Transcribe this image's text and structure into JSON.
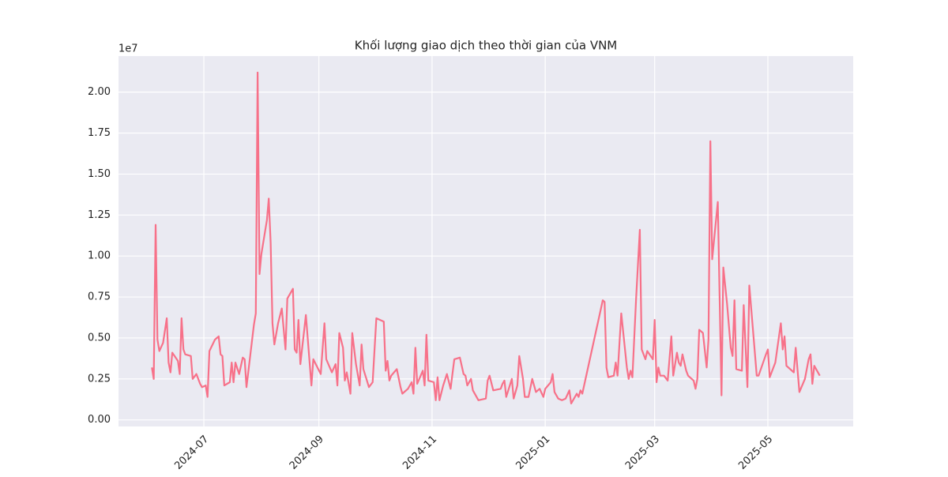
{
  "chart_data": {
    "type": "line",
    "title": "Khối lượng giao dịch theo thời gian của VNM",
    "y_offset_label": "1e7",
    "color": "#f77189",
    "grid": true,
    "x": [
      2,
      3,
      4,
      5,
      6,
      8,
      10,
      11,
      12,
      13,
      16,
      17,
      18,
      19,
      20,
      23,
      24,
      26,
      28,
      29,
      31,
      32,
      33,
      36,
      38,
      39,
      40,
      41,
      44,
      45,
      46,
      47,
      49,
      51,
      52,
      53,
      55,
      57,
      58,
      59,
      60,
      61,
      64,
      65,
      66,
      67,
      68,
      70,
      72,
      74,
      75,
      78,
      79,
      80,
      81,
      82,
      85,
      88,
      89,
      93,
      95,
      96,
      99,
      101,
      102,
      103,
      105,
      106,
      107,
      109,
      110,
      112,
      114,
      115,
      116,
      119,
      121,
      123,
      127,
      128,
      129,
      130,
      131,
      134,
      136,
      137,
      140,
      142,
      143,
      144,
      145,
      148,
      149,
      150,
      151,
      154,
      155,
      156,
      157,
      159,
      161,
      163,
      164,
      165,
      168,
      170,
      171,
      172,
      174,
      175,
      178,
      182,
      183,
      184,
      186,
      190,
      191,
      192,
      193,
      196,
      197,
      199,
      200,
      202,
      203,
      205,
      207,
      209,
      211,
      213,
      214,
      217,
      218,
      219,
      221,
      223,
      225,
      227,
      228,
      231,
      232,
      233,
      234,
      245,
      246,
      247,
      248,
      251,
      252,
      253,
      255,
      258,
      259,
      260,
      261,
      263,
      265,
      266,
      268,
      269,
      272,
      273,
      274,
      275,
      276,
      278,
      280,
      282,
      283,
      285,
      286,
      287,
      288,
      290,
      291,
      294,
      295,
      296,
      297,
      299,
      301,
      302,
      303,
      304,
      307,
      309,
      310,
      312,
      314,
      315,
      316,
      317,
      320,
      321,
      323,
      324,
      328,
      329,
      333,
      334,
      335,
      338,
      341,
      342,
      343,
      344,
      348,
      349,
      351,
      354,
      356,
      357,
      358,
      359,
      362
    ],
    "values": [
      0.32,
      0.25,
      1.19,
      0.49,
      0.42,
      0.47,
      0.62,
      0.35,
      0.29,
      0.41,
      0.36,
      0.28,
      0.62,
      0.43,
      0.4,
      0.39,
      0.25,
      0.28,
      0.22,
      0.2,
      0.21,
      0.14,
      0.42,
      0.49,
      0.51,
      0.4,
      0.39,
      0.21,
      0.23,
      0.35,
      0.23,
      0.35,
      0.28,
      0.38,
      0.37,
      0.2,
      0.39,
      0.58,
      0.65,
      2.12,
      0.89,
      1.01,
      1.22,
      1.35,
      1.08,
      0.59,
      0.46,
      0.59,
      0.68,
      0.43,
      0.74,
      0.8,
      0.43,
      0.41,
      0.61,
      0.34,
      0.64,
      0.21,
      0.37,
      0.28,
      0.59,
      0.37,
      0.29,
      0.34,
      0.21,
      0.53,
      0.44,
      0.24,
      0.29,
      0.16,
      0.53,
      0.34,
      0.21,
      0.46,
      0.31,
      0.2,
      0.23,
      0.62,
      0.6,
      0.3,
      0.36,
      0.24,
      0.27,
      0.31,
      0.2,
      0.16,
      0.19,
      0.23,
      0.16,
      0.44,
      0.22,
      0.3,
      0.21,
      0.52,
      0.24,
      0.23,
      0.12,
      0.26,
      0.12,
      0.21,
      0.28,
      0.19,
      0.28,
      0.37,
      0.38,
      0.28,
      0.27,
      0.21,
      0.25,
      0.18,
      0.12,
      0.13,
      0.24,
      0.27,
      0.18,
      0.19,
      0.22,
      0.24,
      0.14,
      0.25,
      0.13,
      0.21,
      0.39,
      0.25,
      0.14,
      0.14,
      0.25,
      0.17,
      0.19,
      0.14,
      0.19,
      0.23,
      0.28,
      0.17,
      0.13,
      0.12,
      0.13,
      0.18,
      0.1,
      0.16,
      0.14,
      0.18,
      0.16,
      0.73,
      0.72,
      0.32,
      0.26,
      0.27,
      0.35,
      0.27,
      0.65,
      0.32,
      0.25,
      0.3,
      0.26,
      0.74,
      1.16,
      0.43,
      0.37,
      0.42,
      0.37,
      0.61,
      0.23,
      0.32,
      0.27,
      0.27,
      0.24,
      0.51,
      0.27,
      0.41,
      0.35,
      0.33,
      0.4,
      0.3,
      0.27,
      0.24,
      0.19,
      0.25,
      0.55,
      0.53,
      0.32,
      0.49,
      1.7,
      0.98,
      1.33,
      0.15,
      0.93,
      0.71,
      0.44,
      0.39,
      0.73,
      0.31,
      0.3,
      0.7,
      0.2,
      0.82,
      0.27,
      0.27,
      0.4,
      0.43,
      0.26,
      0.35,
      0.59,
      0.43,
      0.51,
      0.33,
      0.29,
      0.44,
      0.17,
      0.25,
      0.37,
      0.4,
      0.22,
      0.33,
      0.27
    ],
    "xlim": [
      -16,
      380
    ],
    "xticks": [
      {
        "value": 30,
        "label": "2024-07"
      },
      {
        "value": 92,
        "label": "2024-09"
      },
      {
        "value": 153,
        "label": "2024-11"
      },
      {
        "value": 214,
        "label": "2025-01"
      },
      {
        "value": 273,
        "label": "2025-03"
      },
      {
        "value": 334,
        "label": "2025-05"
      }
    ],
    "ylim": [
      -0.04,
      2.22
    ],
    "yticks": [
      {
        "value": 0,
        "label": "0.00"
      },
      0.25,
      {
        "value": 0.5,
        "label": "0.50"
      },
      0.75,
      {
        "value": 1,
        "label": "1.00"
      },
      1.25,
      {
        "value": 1.5,
        "label": "1.50"
      },
      1.75,
      {
        "value": 2,
        "label": "2.00"
      }
    ]
  }
}
